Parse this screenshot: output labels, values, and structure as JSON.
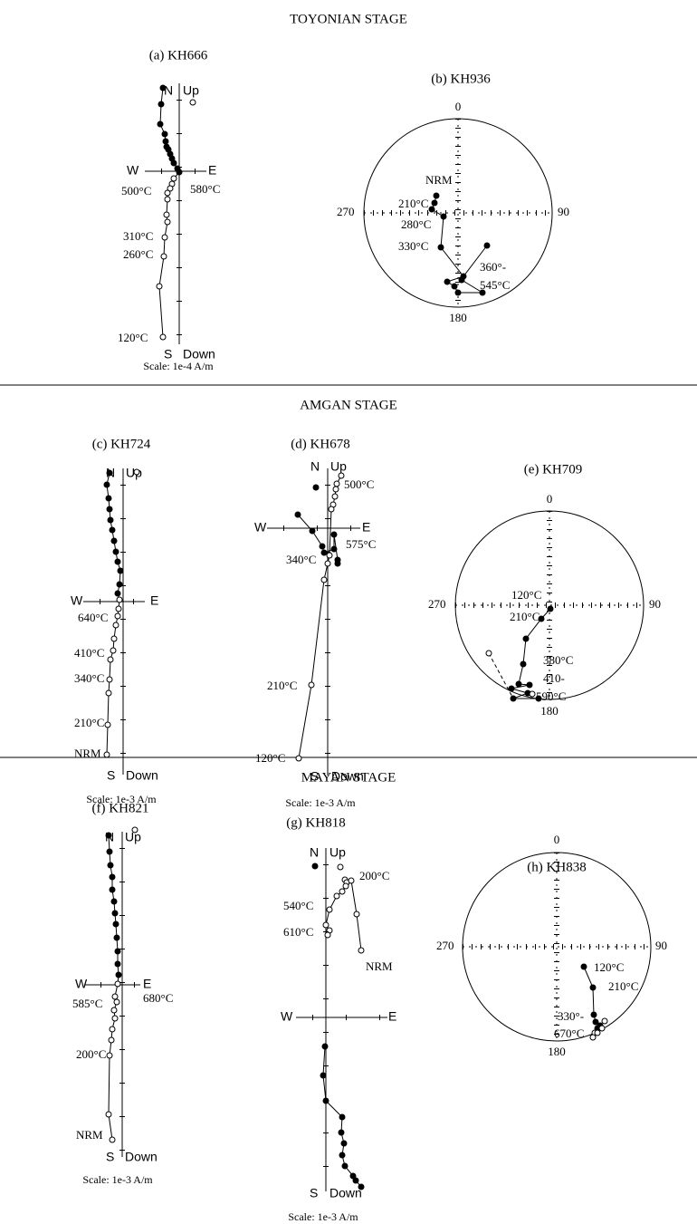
{
  "sections": [
    {
      "title": "TOYONIAN STAGE",
      "panels": [
        {
          "label": "(a) KH666",
          "axis_labels": [
            "N",
            "Up",
            "W",
            "E",
            "S",
            "Down"
          ],
          "scale": "Scale: 1e-4 A/m",
          "annotations": [
            "580°C",
            "500°C",
            "310°C",
            "260°C",
            "120°C"
          ]
        },
        {
          "label": "(b) KH936",
          "directions": [
            "0",
            "90",
            "180",
            "270"
          ],
          "annotations": [
            "NRM",
            "210°C",
            "280°C",
            "330°C",
            "360°-",
            "545°C"
          ]
        }
      ]
    },
    {
      "title": "AMGAN STAGE",
      "panels": [
        {
          "label": "(c) KH724",
          "axis_labels": [
            "N",
            "Up",
            "W",
            "E",
            "S",
            "Down"
          ],
          "scale": "Scale: 1e-3 A/m",
          "annotations": [
            "640°C",
            "410°C",
            "340°C",
            "210°C",
            "NRM"
          ]
        },
        {
          "label": "(d) KH678",
          "axis_labels": [
            "N",
            "Up",
            "W",
            "E",
            "S",
            "Down"
          ],
          "scale": "Scale: 1e-3 A/m",
          "annotations": [
            "500°C",
            "575°C",
            "340°C",
            "210°C",
            "120°C"
          ]
        },
        {
          "label": "(e) KH709",
          "directions": [
            "0",
            "90",
            "180",
            "270"
          ],
          "annotations": [
            "120°C",
            "210°C",
            "380°C",
            "410-",
            "590°C"
          ]
        }
      ]
    },
    {
      "title": "MAYAN STAGE",
      "panels": [
        {
          "label": "(f) KH821",
          "axis_labels": [
            "N",
            "Up",
            "W",
            "E",
            "S",
            "Down"
          ],
          "scale": "Scale: 1e-3 A/m",
          "annotations": [
            "585°C",
            "680°C",
            "200°C",
            "NRM"
          ]
        },
        {
          "label": "(g) KH818",
          "axis_labels": [
            "N",
            "Up",
            "W",
            "E",
            "S",
            "Down"
          ],
          "scale": "Scale: 1e-3 A/m",
          "annotations": [
            "200°C",
            "540°C",
            "610°C",
            "NRM"
          ]
        },
        {
          "label": "(h) KH838",
          "directions": [
            "0",
            "90",
            "180",
            "270"
          ],
          "annotations": [
            "120°C",
            "210°C",
            "330°-",
            "670°C"
          ]
        }
      ]
    }
  ]
}
